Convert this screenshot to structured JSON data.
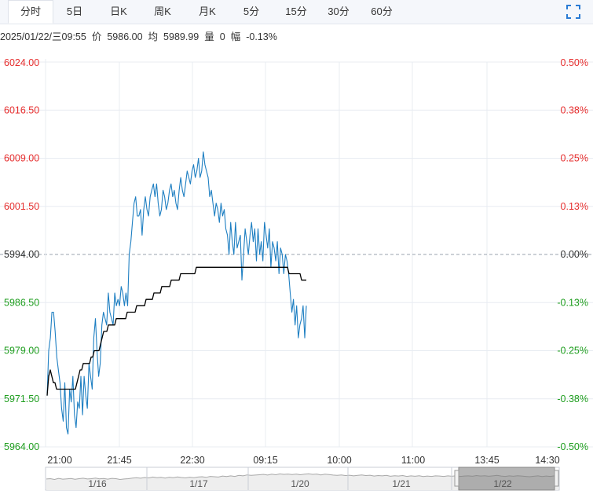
{
  "tabs": [
    {
      "label": "分时",
      "active": true
    },
    {
      "label": "5日",
      "active": false
    },
    {
      "label": "日K",
      "active": false
    },
    {
      "label": "周K",
      "active": false
    },
    {
      "label": "月K",
      "active": false
    },
    {
      "label": "5分",
      "active": false
    },
    {
      "label": "15分",
      "active": false
    },
    {
      "label": "30分",
      "active": false
    },
    {
      "label": "60分",
      "active": false
    }
  ],
  "toolbar": {
    "fullscreen_icon": "fullscreen-icon"
  },
  "info": {
    "datetime": "2025/01/22/三09:55",
    "price_label": "价",
    "price": "5986.00",
    "avg_label": "均",
    "avg": "5989.99",
    "vol_label": "量",
    "vol": "0",
    "change_label": "幅",
    "change": "-0.13%"
  },
  "colors": {
    "up": "#e62e2e",
    "down": "#1f9e1f",
    "neutral": "#333333",
    "price_line": "#1e7fc2",
    "avg_line": "#000000"
  },
  "chart_data": {
    "type": "line",
    "prev_close": 5994.0,
    "ylim": [
      5964.0,
      6024.0
    ],
    "y_ticks": [
      "6024.00",
      "6016.50",
      "6009.00",
      "6001.50",
      "5994.00",
      "5986.50",
      "5979.00",
      "5971.50",
      "5964.00"
    ],
    "y_ticks_pct": [
      "0.50%",
      "0.38%",
      "0.25%",
      "0.13%",
      "0.00%",
      "-0.13%",
      "-0.25%",
      "-0.38%",
      "-0.50%"
    ],
    "x_ticks": [
      "21:00",
      "21:45",
      "22:30",
      "09:15",
      "10:00",
      "11:00",
      "13:45",
      "14:30"
    ],
    "series": [
      {
        "values": [
          5972,
          5979,
          5981,
          5985,
          5985,
          5982,
          5978,
          5976,
          5974,
          5970,
          5968,
          5974,
          5967,
          5966,
          5973,
          5971,
          5975,
          5969,
          5967,
          5971,
          5970,
          5975,
          5969,
          5975,
          5972,
          5970,
          5977,
          5975,
          5973,
          5981,
          5984,
          5979,
          5975,
          5977,
          5983,
          5985,
          5984,
          5983,
          5988,
          5985,
          5984,
          5983,
          5988,
          5986,
          5987,
          5986,
          5989,
          5988,
          5986,
          5988,
          5986,
          5994,
          5996,
          5999,
          6002,
          6003,
          6000,
          6000,
          6001,
          5997,
          6001,
          6003,
          6001,
          6000,
          6003,
          6004,
          6005,
          6003,
          6005,
          6002,
          6000,
          6001,
          6004,
          6003,
          6001,
          6002,
          6004,
          6005,
          6003,
          6004,
          6002,
          6001,
          6004,
          6006,
          6004,
          6003,
          6005,
          6007,
          6006,
          6005,
          6007,
          6008,
          6006,
          6007,
          6009,
          6006,
          6007,
          6010,
          6008,
          6007,
          6006,
          6003,
          6004,
          6002,
          6000,
          6002,
          6001,
          5999,
          6002,
          6000,
          6001,
          5998,
          5997,
          5994,
          5999,
          5996,
          5994,
          5999,
          5995,
          5996,
          5997,
          5990,
          5994,
          5998,
          5996,
          5994,
          5997,
          5999,
          5996,
          5998,
          5993,
          5998,
          5994,
          5996,
          5993,
          5999,
          5997,
          5995,
          5998,
          5992,
          5996,
          5995,
          5993,
          5996,
          5991,
          5995,
          5994,
          5991,
          5994,
          5993,
          5991,
          5988,
          5985,
          5987,
          5983,
          5986,
          5981,
          5983,
          5984,
          5986,
          5981,
          5986
        ]
      },
      {
        "values": [
          5972,
          5975,
          5976,
          5975,
          5974,
          5974,
          5973,
          5973,
          5973,
          5973,
          5973,
          5973,
          5973,
          5973,
          5973,
          5973,
          5973,
          5973,
          5973,
          5974,
          5975,
          5976,
          5976,
          5977,
          5977,
          5977,
          5977,
          5977,
          5978,
          5978,
          5979,
          5979,
          5979,
          5979,
          5980,
          5981,
          5982,
          5982,
          5982,
          5983,
          5983,
          5983,
          5983,
          5983,
          5984,
          5984,
          5984,
          5984,
          5984,
          5984,
          5984,
          5985,
          5985,
          5985,
          5985,
          5985,
          5985,
          5986,
          5986,
          5986,
          5986,
          5986,
          5986,
          5987,
          5987,
          5987,
          5987,
          5987,
          5988,
          5988,
          5988,
          5988,
          5988,
          5989,
          5989,
          5989,
          5989,
          5989,
          5989,
          5990,
          5990,
          5990,
          5990,
          5990,
          5990,
          5991,
          5991,
          5991,
          5991,
          5991,
          5991,
          5991,
          5991,
          5991,
          5991,
          5992,
          5992,
          5992,
          5992,
          5992,
          5992,
          5992,
          5992,
          5992,
          5992,
          5992,
          5992,
          5992,
          5992,
          5992,
          5992,
          5992,
          5992,
          5992,
          5992,
          5992,
          5992,
          5992,
          5992,
          5992,
          5992,
          5992,
          5992,
          5992,
          5992,
          5992,
          5992,
          5992,
          5992,
          5992,
          5992,
          5992,
          5992,
          5992,
          5992,
          5992,
          5992,
          5992,
          5992,
          5992,
          5992,
          5992,
          5992,
          5992,
          5992,
          5992,
          5992,
          5992,
          5992,
          5992,
          5992,
          5992,
          5992,
          5992,
          5991,
          5991,
          5991,
          5991,
          5991,
          5991,
          5991,
          5991,
          5990,
          5990,
          5990,
          5990
        ]
      }
    ]
  },
  "navigator": {
    "dates": [
      "1/16",
      "1/17",
      "1/20",
      "1/21",
      "1/22"
    ],
    "profile": [
      0.52,
      0.5,
      0.55,
      0.48,
      0.53,
      0.51,
      0.49,
      0.54,
      0.5,
      0.47,
      0.52,
      0.5,
      0.46,
      0.51,
      0.49,
      0.53,
      0.48,
      0.5,
      0.55,
      0.52,
      0.5,
      0.46,
      0.44,
      0.47,
      0.43,
      0.45,
      0.4,
      0.44,
      0.42,
      0.46,
      0.41,
      0.44,
      0.39,
      0.43,
      0.45,
      0.41,
      0.44,
      0.4,
      0.38,
      0.42,
      0.36,
      0.38,
      0.4,
      0.34,
      0.37,
      0.33,
      0.36,
      0.3,
      0.33,
      0.27,
      0.3,
      0.28,
      0.26,
      0.24,
      0.28,
      0.23,
      0.26,
      0.21,
      0.24,
      0.22,
      0.25,
      0.22,
      0.26,
      0.23,
      0.2,
      0.24,
      0.22,
      0.27,
      0.23,
      0.25,
      0.28,
      0.3,
      0.27,
      0.31,
      0.29,
      0.33,
      0.3,
      0.27,
      0.31,
      0.29,
      0.34,
      0.31,
      0.33,
      0.3,
      0.35,
      0.32,
      0.34,
      0.31,
      0.36,
      0.33,
      0.35,
      0.32,
      0.37,
      0.34,
      0.36,
      0.33,
      0.34,
      0.36,
      0.33,
      0.35,
      0.32,
      0.36,
      0.34,
      0.33,
      0.35,
      0.31,
      0.34,
      0.32,
      0.35,
      0.33,
      0.3,
      0.34,
      0.36,
      0.33,
      0.35,
      0.32,
      0.34,
      0.36,
      0.38,
      0.35,
      0.33,
      0.37,
      0.34,
      0.36,
      0.33,
      0.35
    ]
  }
}
